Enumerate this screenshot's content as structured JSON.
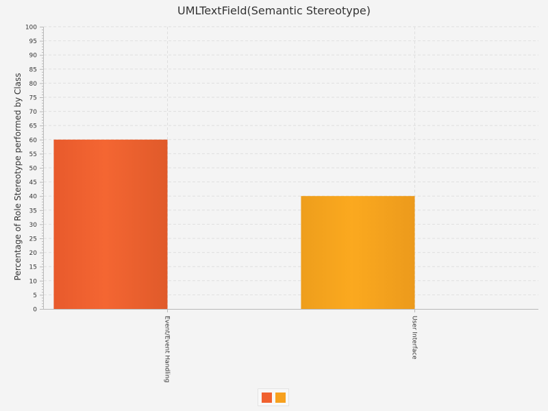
{
  "chart_data": {
    "type": "bar",
    "title": "UMLTextField(Semantic Stereotype)",
    "xlabel": "",
    "ylabel": "Percentage of Role Stereotype performed by Class",
    "ylim": [
      0,
      100
    ],
    "ytick_step": 5,
    "grid": true,
    "legend_placement": "bottom-center",
    "categories": [
      "Event/Event Handling",
      "User Interface"
    ],
    "series": [
      {
        "values": [
          60,
          null
        ],
        "color": "#f0612f"
      },
      {
        "values": [
          null,
          40
        ],
        "color": "#f7a11f"
      }
    ]
  }
}
